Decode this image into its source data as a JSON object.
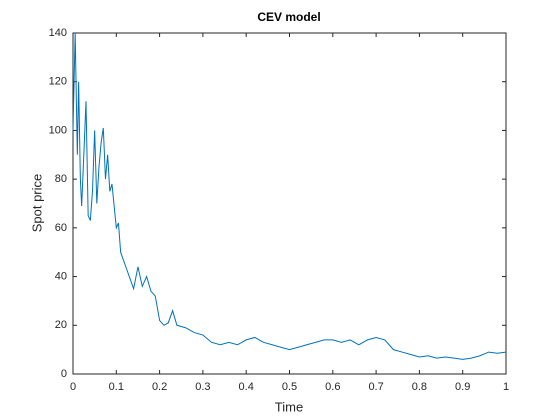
{
  "chart_data": {
    "type": "line",
    "title": "CEV model",
    "xlabel": "Time",
    "ylabel": "Spot price",
    "xlim": [
      0,
      1
    ],
    "ylim": [
      0,
      140
    ],
    "xticks": [
      0,
      0.1,
      0.2,
      0.3,
      0.4,
      0.5,
      0.6,
      0.7,
      0.8,
      0.9,
      1
    ],
    "yticks": [
      0,
      20,
      40,
      60,
      80,
      100,
      120,
      140
    ],
    "grid": false,
    "box": true,
    "series": [
      {
        "name": "Spot price",
        "color": "#0072bd",
        "x": [
          0,
          0.005,
          0.01,
          0.013,
          0.017,
          0.02,
          0.025,
          0.03,
          0.035,
          0.04,
          0.045,
          0.05,
          0.055,
          0.06,
          0.065,
          0.07,
          0.075,
          0.08,
          0.085,
          0.09,
          0.1,
          0.105,
          0.11,
          0.12,
          0.13,
          0.14,
          0.15,
          0.16,
          0.17,
          0.18,
          0.19,
          0.2,
          0.21,
          0.22,
          0.23,
          0.24,
          0.26,
          0.28,
          0.3,
          0.32,
          0.34,
          0.36,
          0.38,
          0.4,
          0.42,
          0.44,
          0.46,
          0.48,
          0.5,
          0.52,
          0.54,
          0.56,
          0.58,
          0.6,
          0.62,
          0.64,
          0.66,
          0.68,
          0.7,
          0.72,
          0.74,
          0.76,
          0.78,
          0.8,
          0.82,
          0.84,
          0.86,
          0.88,
          0.9,
          0.92,
          0.94,
          0.96,
          0.98,
          1
        ],
        "values": [
          100,
          140,
          90,
          120,
          80,
          69,
          90,
          112,
          65,
          63,
          75,
          100,
          70,
          85,
          95,
          101,
          80,
          90,
          75,
          78,
          60,
          62,
          50,
          45,
          40,
          35,
          44,
          36,
          40,
          34,
          32,
          22,
          20,
          21,
          26,
          20,
          19,
          17,
          16,
          13,
          12,
          13,
          12,
          14,
          15,
          13,
          12,
          11,
          10,
          11,
          12,
          13,
          14,
          14,
          13,
          14,
          12,
          14,
          15,
          14,
          10,
          9,
          8,
          7,
          7.5,
          6.5,
          7,
          6.5,
          6,
          6.5,
          7.5,
          9,
          8.5,
          9
        ]
      }
    ]
  }
}
